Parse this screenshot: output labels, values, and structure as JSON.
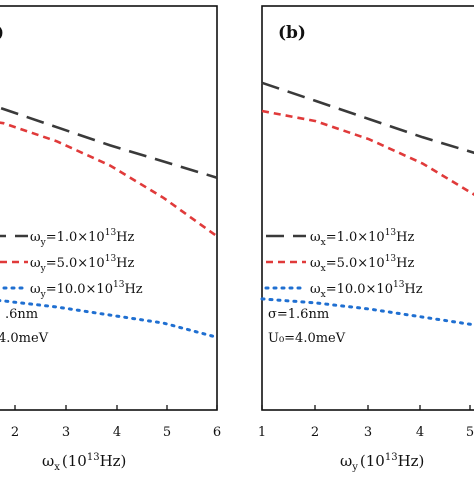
{
  "chart_data": [
    {
      "type": "line",
      "panel_label": "",
      "xlabel": "ωx (10¹³Hz)",
      "xlabel_parts": {
        "symbol": "ω",
        "sub": "x",
        "rest_pre": "(10",
        "sup": "13",
        "rest_post": "Hz)"
      },
      "xlim": [
        1,
        6
      ],
      "x_ticks": [
        "2",
        "3",
        "4",
        "5",
        "6"
      ],
      "params": [
        ".6nm",
        "4.0meV"
      ],
      "series": [
        {
          "name": "ωy=1.0×10¹³Hz",
          "legend": {
            "pre": "ω",
            "sub": "y",
            "mid": "=1.0×10",
            "sup": "13",
            "post": "Hz"
          },
          "color": "#3a3a3a",
          "dash": "long",
          "x": [
            1,
            2,
            3,
            4,
            5,
            6
          ],
          "y": [
            0.79,
            0.745,
            0.7,
            0.655,
            0.615,
            0.575
          ]
        },
        {
          "name": "ωy=5.0×10¹³Hz",
          "legend": {
            "pre": "ω",
            "sub": "y",
            "mid": "=5.0×10",
            "sup": "13",
            "post": "Hz"
          },
          "color": "#e03a3a",
          "dash": "short",
          "x": [
            1,
            2,
            3,
            4,
            5,
            6
          ],
          "y": [
            0.73,
            0.71,
            0.665,
            0.605,
            0.525,
            0.43
          ]
        },
        {
          "name": "ωy=10.0×10¹³Hz",
          "legend": {
            "pre": "ω",
            "sub": "y",
            "mid": "=10.0×10",
            "sup": "13",
            "post": "Hz"
          },
          "color": "#1f6fd1",
          "dash": "dot",
          "x": [
            1,
            2,
            3,
            4,
            5,
            6
          ],
          "y": [
            0.28,
            0.27,
            0.255,
            0.235,
            0.215,
            0.18
          ]
        }
      ]
    },
    {
      "type": "line",
      "panel_label": "(b)",
      "xlabel": "ωy (10¹³Hz)",
      "xlabel_parts": {
        "symbol": "ω",
        "sub": "y",
        "rest_pre": "(10",
        "sup": "13",
        "rest_post": "Hz)"
      },
      "xlim": [
        1,
        6
      ],
      "x_ticks": [
        "1",
        "2",
        "3",
        "4",
        "5"
      ],
      "params": [
        "σ=1.6nm",
        "U₀=4.0meV"
      ],
      "series": [
        {
          "name": "ωx=1.0×10¹³Hz",
          "legend": {
            "pre": "ω",
            "sub": "x",
            "mid": "=1.0×10",
            "sup": "13",
            "post": "Hz"
          },
          "color": "#3a3a3a",
          "dash": "long",
          "x": [
            1,
            2,
            3,
            4,
            5,
            6
          ],
          "y": [
            0.81,
            0.765,
            0.72,
            0.675,
            0.635,
            0.59
          ]
        },
        {
          "name": "ωx=5.0×10¹³Hz",
          "legend": {
            "pre": "ω",
            "sub": "x",
            "mid": "=5.0×10",
            "sup": "13",
            "post": "Hz"
          },
          "color": "#e03a3a",
          "dash": "short",
          "x": [
            1,
            2,
            3,
            4,
            5,
            6
          ],
          "y": [
            0.74,
            0.715,
            0.67,
            0.61,
            0.53,
            0.44
          ]
        },
        {
          "name": "ωx=10.0×10¹³Hz",
          "legend": {
            "pre": "ω",
            "sub": "x",
            "mid": "=10.0×10",
            "sup": "13",
            "post": "Hz"
          },
          "color": "#1f6fd1",
          "dash": "dot",
          "x": [
            1,
            2,
            3,
            4,
            5,
            6
          ],
          "y": [
            0.275,
            0.265,
            0.25,
            0.23,
            0.21,
            0.175
          ]
        }
      ]
    }
  ]
}
